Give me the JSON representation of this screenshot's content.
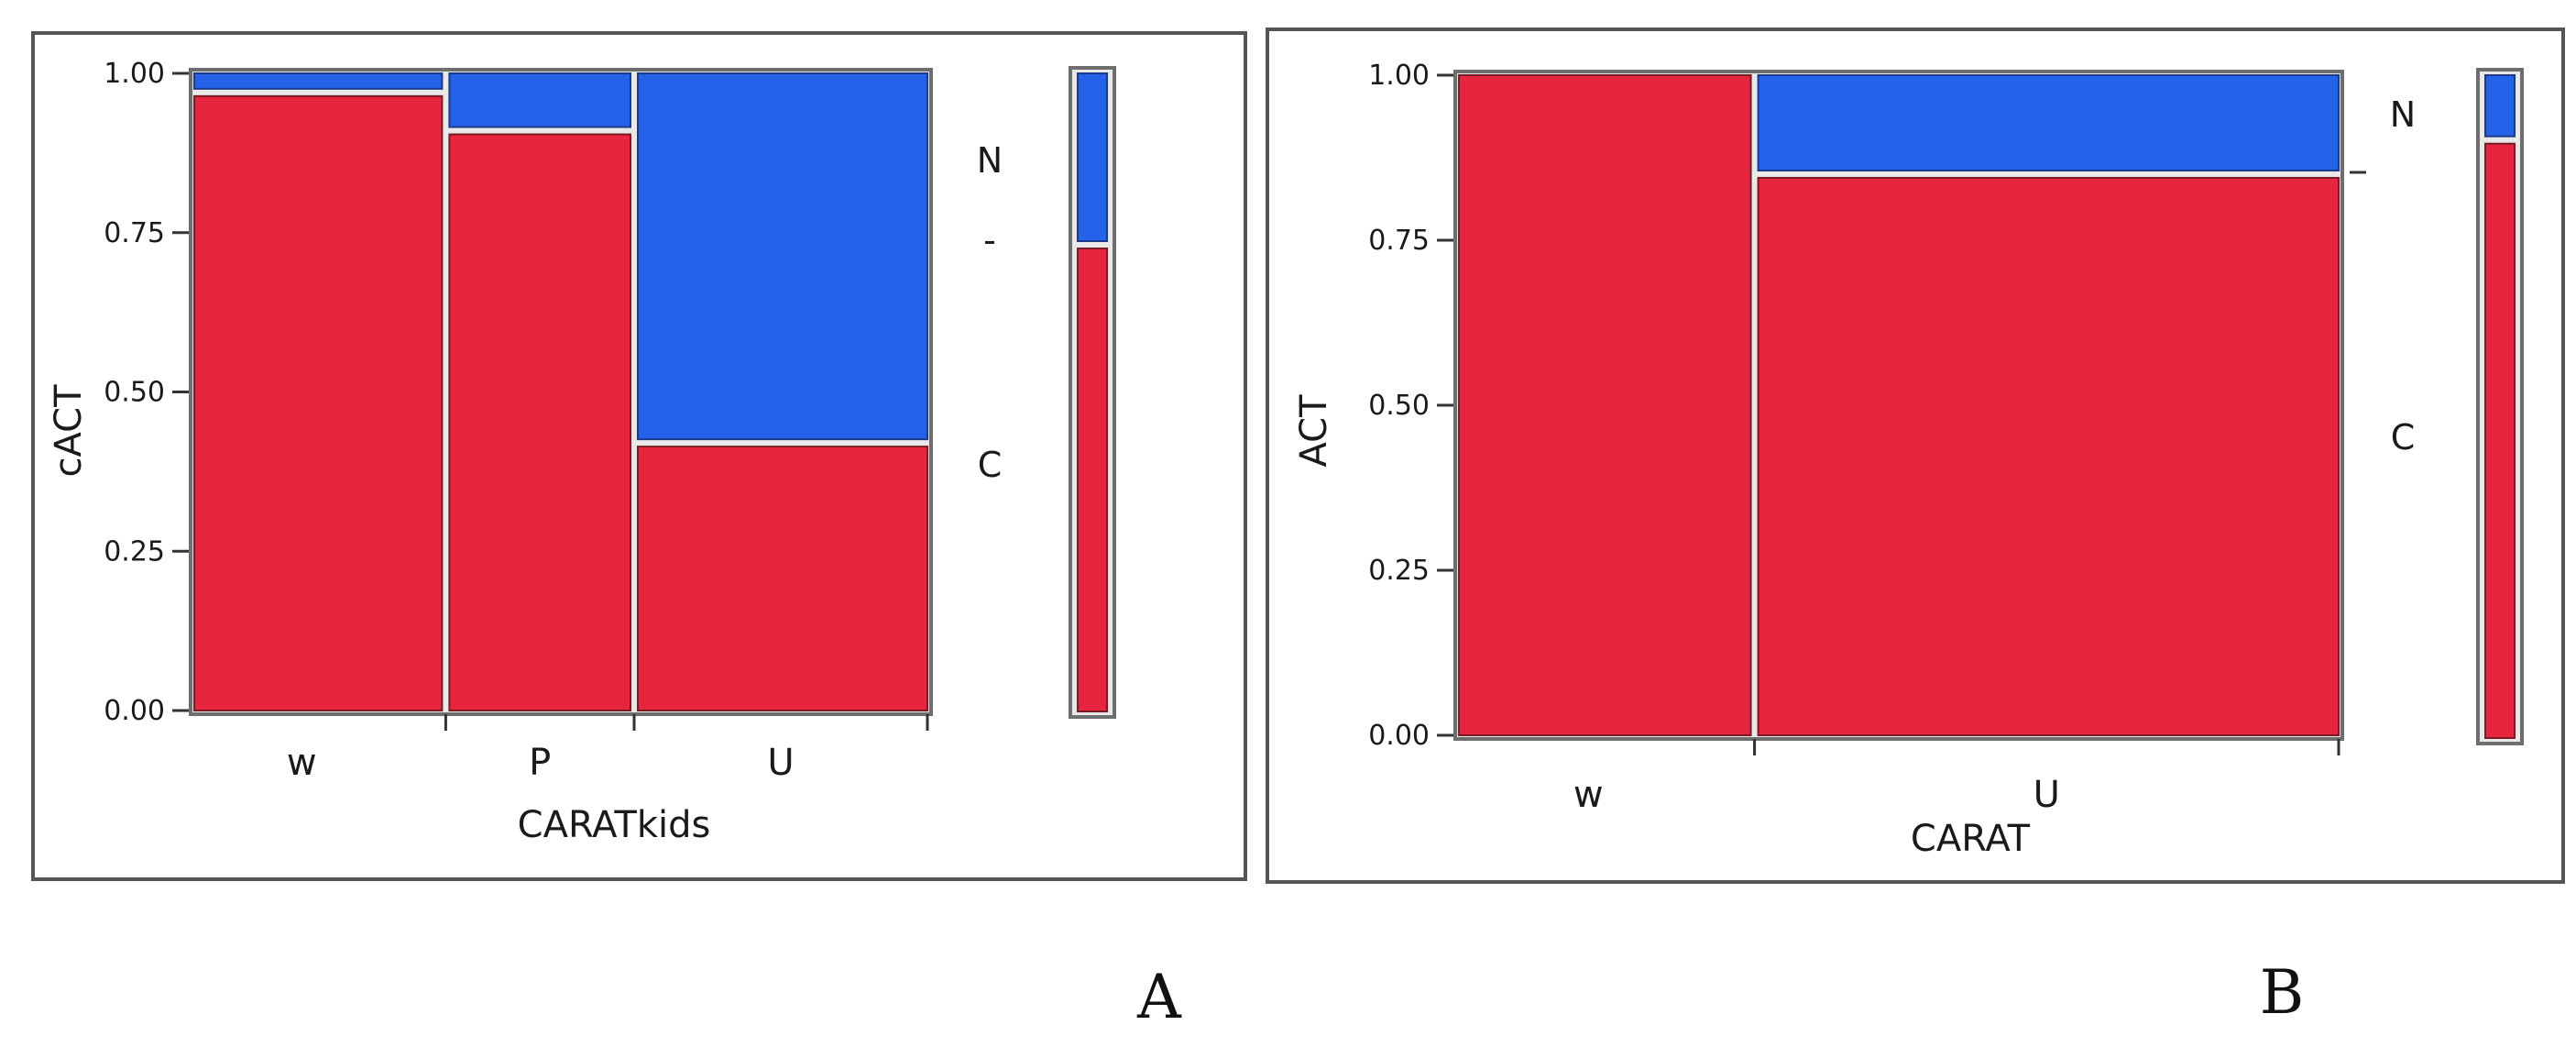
{
  "colors": {
    "C": "#e8253f",
    "N": "#2462ea",
    "frame": "#6e6e6e",
    "divider": "#d8d8d8"
  },
  "chart_data": [
    {
      "type": "mosaic",
      "panel_label": "A",
      "xlabel": "CARATkids",
      "ylabel": "cACT",
      "ylim": [
        0,
        1
      ],
      "yticks": [
        "0.00",
        "0.25",
        "0.50",
        "0.75",
        "1.00"
      ],
      "categories": [
        "w",
        "P",
        "U"
      ],
      "category_widths": [
        0.343,
        0.257,
        0.4
      ],
      "series": [
        {
          "name": "C",
          "values": [
            0.97,
            0.91,
            0.42
          ]
        },
        {
          "name": "N",
          "values": [
            0.03,
            0.09,
            0.58
          ]
        }
      ],
      "side_labels": [
        "N",
        "-",
        "C"
      ],
      "overall": {
        "C": 0.73,
        "N": 0.27
      }
    },
    {
      "type": "mosaic",
      "panel_label": "B",
      "xlabel": "CARAT",
      "ylabel": "ACT",
      "ylim": [
        0,
        1
      ],
      "yticks": [
        "0.00",
        "0.25",
        "0.50",
        "0.75",
        "1.00"
      ],
      "categories": [
        "w",
        "U"
      ],
      "category_widths": [
        0.336,
        0.664
      ],
      "series": [
        {
          "name": "C",
          "values": [
            1.0,
            0.85
          ]
        },
        {
          "name": "N",
          "values": [
            0.0,
            0.15
          ]
        }
      ],
      "side_labels": [
        "N",
        "C"
      ],
      "overall": {
        "C": 0.9,
        "N": 0.1
      }
    }
  ]
}
